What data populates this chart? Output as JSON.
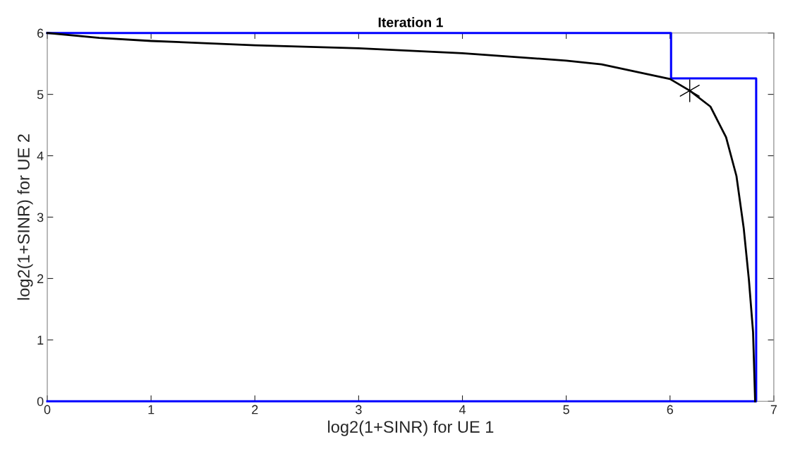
{
  "chart_data": {
    "type": "line",
    "title": "Iteration 1",
    "xlabel": "log2(1+SINR) for UE 1",
    "ylabel": "log2(1+SINR) for UE 2",
    "xlim": [
      0,
      7
    ],
    "ylim": [
      0,
      6
    ],
    "xticks": [
      0,
      1,
      2,
      3,
      4,
      5,
      6,
      7
    ],
    "yticks": [
      0,
      1,
      2,
      3,
      4,
      5,
      6
    ],
    "grid": false,
    "legend": false,
    "series": [
      {
        "color": "#0000ff",
        "x": [
          0,
          6.01,
          6.01,
          6.83,
          6.83,
          0
        ],
        "values": [
          6,
          6,
          5.26,
          5.26,
          0,
          0
        ]
      },
      {
        "color": "#000000",
        "x": [
          0,
          0.5,
          1,
          2,
          3,
          4,
          5,
          5.34,
          6.0,
          6.19,
          6.39,
          6.54,
          6.64,
          6.71,
          6.76,
          6.8,
          6.82
        ],
        "values": [
          6,
          5.92,
          5.87,
          5.8,
          5.75,
          5.67,
          5.55,
          5.49,
          5.25,
          5.06,
          4.8,
          4.3,
          3.67,
          2.82,
          1.98,
          1.13,
          0
        ]
      },
      {
        "type": "scatter",
        "color": "#000000",
        "marker": "cross",
        "x": [
          6.19
        ],
        "values": [
          5.06
        ]
      }
    ]
  }
}
